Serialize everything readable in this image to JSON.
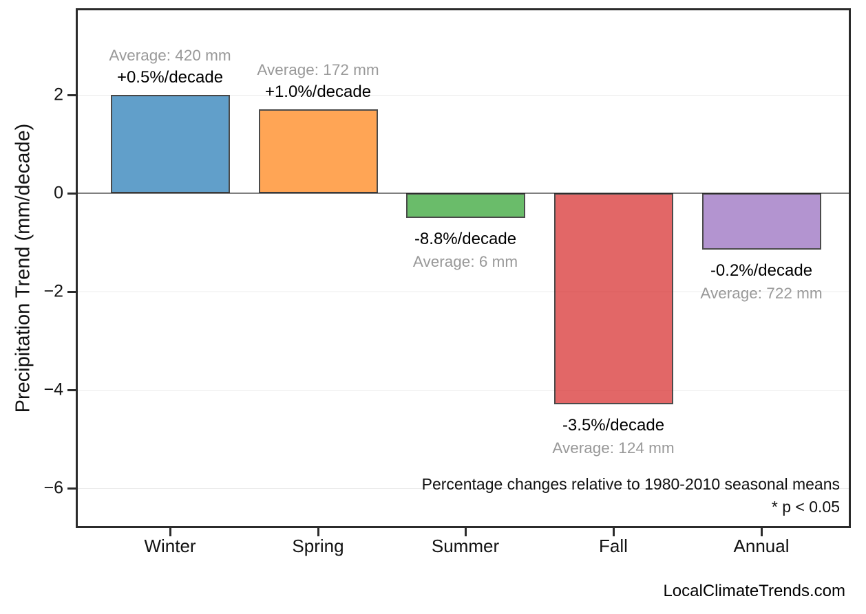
{
  "page": {
    "watermark": "LocalClimateTrends.com"
  },
  "chart_data": {
    "type": "bar",
    "title": "",
    "xlabel": "",
    "ylabel": "Precipitation Trend (mm/decade)",
    "categories": [
      "Winter",
      "Spring",
      "Summer",
      "Fall",
      "Annual"
    ],
    "values": [
      2.0,
      1.7,
      -0.5,
      -4.3,
      -1.15
    ],
    "units": "mm/decade",
    "bar_colors": [
      "#1f77b4",
      "#ff7f0e",
      "#2ca02c",
      "#d62728",
      "#9467bd"
    ],
    "bar_fill_opacity": 0.7,
    "bar_edge_color": "#000000",
    "trend_labels": [
      "+0.5%/decade",
      "+1.0%/decade",
      "-8.8%/decade",
      "-3.5%/decade",
      "-0.2%/decade"
    ],
    "average_labels": [
      "Average: 420 mm",
      "Average: 172 mm",
      "Average: 6 mm",
      "Average: 124 mm",
      "Average: 722 mm"
    ],
    "yticks": [
      2,
      0,
      -2,
      -4,
      -6
    ],
    "ytick_labels": [
      "2",
      "0",
      "−2",
      "−4",
      "−6"
    ],
    "ylim": [
      -6.8,
      3.76
    ],
    "grid": "horizontal",
    "gridline_color": "#ebebeb",
    "zero_line_color": "#808080",
    "axis_color": "#2b2b2b",
    "label_colors": {
      "trend": "#000000",
      "average": "#999999"
    },
    "annotations": {
      "note_line1": "Percentage changes relative to 1980-2010 seasonal means",
      "note_line2": "* p < 0.05"
    }
  }
}
